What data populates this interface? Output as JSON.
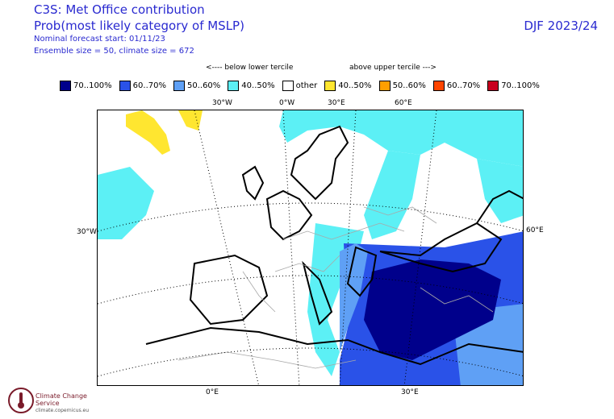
{
  "header": {
    "title": "C3S: Met Office contribution",
    "subtitle": "Prob(most likely category of MSLP)",
    "forecast_start": "Nominal forecast start: 01/11/23",
    "ensemble": "Ensemble size = 50, climate size = 672",
    "season": "DJF 2023/24"
  },
  "legend": {
    "below_label": "<---- below lower tercile",
    "above_label": "above upper tercile --->",
    "items": [
      {
        "label": "70..100%",
        "color": "#00008b"
      },
      {
        "label": "60..70%",
        "color": "#2a52e8"
      },
      {
        "label": "50..60%",
        "color": "#5fa0f5"
      },
      {
        "label": "40..50%",
        "color": "#5cf0f5"
      },
      {
        "label": "other",
        "color": "#ffffff"
      },
      {
        "label": "40..50%",
        "color": "#ffe630"
      },
      {
        "label": "50..60%",
        "color": "#ff9f00"
      },
      {
        "label": "60..70%",
        "color": "#ff4500"
      },
      {
        "label": "70..100%",
        "color": "#c8001e"
      }
    ]
  },
  "map": {
    "ticks": {
      "top_30w": "30°W",
      "top_0": "0°W",
      "top_30e": "30°E",
      "top_60e": "60°E",
      "left_30w": "30°W",
      "right_60e": "60°E",
      "bottom_0": "0°E",
      "bottom_30e": "30°E"
    }
  },
  "footer": {
    "logo_name": "Climate Change Service",
    "logo_url": "climate.copernicus.eu"
  }
}
